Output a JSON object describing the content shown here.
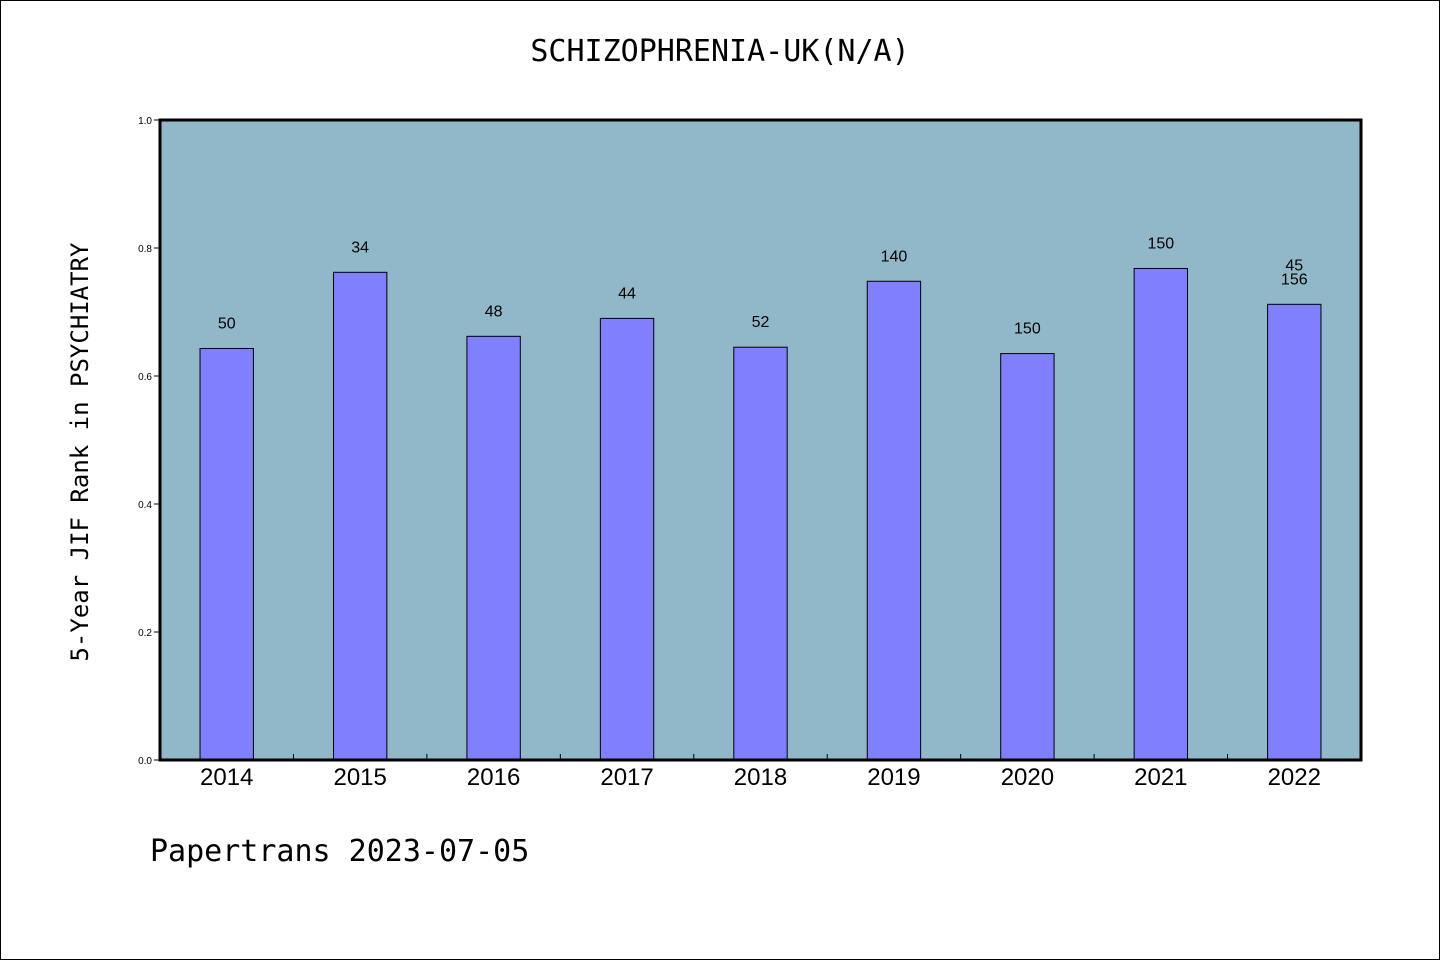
{
  "chart_data": {
    "type": "bar",
    "title": "SCHIZOPHRENIA-UK(N/A)",
    "ylabel": "5-Year JIF Rank in PSYCHIATRY",
    "xlabel": "",
    "ylim": [
      0,
      1.0
    ],
    "yticks": [
      "0.0",
      "0.2",
      "0.4",
      "0.6",
      "0.8",
      "1.0"
    ],
    "categories": [
      "2014",
      "2015",
      "2016",
      "2017",
      "2018",
      "2019",
      "2020",
      "2021",
      "2022"
    ],
    "values": [
      0.643,
      0.762,
      0.662,
      0.69,
      0.645,
      0.748,
      0.635,
      0.768,
      0.712
    ],
    "data_labels": [
      [
        "50"
      ],
      [
        "34"
      ],
      [
        "48"
      ],
      [
        "44"
      ],
      [
        "52"
      ],
      [
        "140"
      ],
      [
        "150"
      ],
      [
        "150"
      ],
      [
        "45",
        "156"
      ]
    ],
    "grid": false,
    "colors": {
      "plot_bg": "#90b8c8",
      "bar": "#8080ff",
      "bar_edge": "#000000"
    }
  },
  "footer": "Papertrans 2023-07-05"
}
